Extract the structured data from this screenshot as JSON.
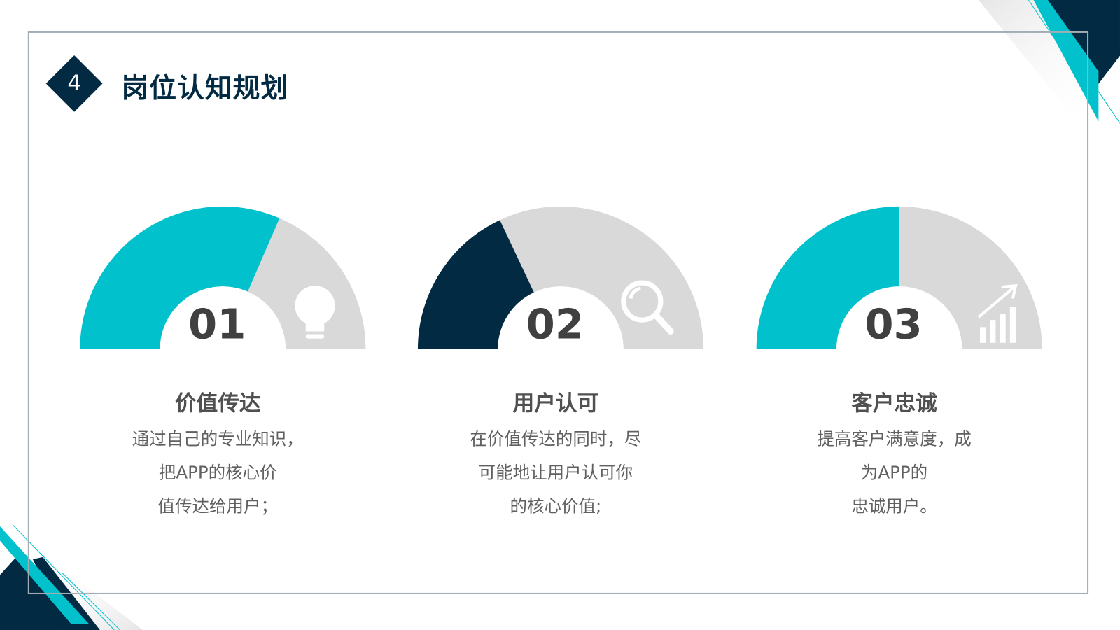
{
  "slide": {
    "number": "4",
    "title": "岗位认知规划"
  },
  "colors": {
    "navy": "#022a43",
    "cyan": "#00c1cc",
    "gray": "#d9d9d9"
  },
  "cards": [
    {
      "num": "01",
      "title": "价值传达",
      "lines": [
        "通过自己的专业知识，",
        "把APP的核心价",
        "值传达给用户；"
      ],
      "fill_fraction": 0.63,
      "fill_color": "#00c1cc",
      "icon": "lightbulb-icon"
    },
    {
      "num": "02",
      "title": "用户认可",
      "lines": [
        "在价值传达的同时，尽",
        "可能地让用户认可你",
        "的核心价值;"
      ],
      "fill_fraction": 0.36,
      "fill_color": "#022a43",
      "icon": "magnifier-icon"
    },
    {
      "num": "03",
      "title": "客户忠诚",
      "lines": [
        "提高客户满意度，成",
        "为APP的",
        "忠诚用户。"
      ],
      "fill_fraction": 0.5,
      "fill_color": "#00c1cc",
      "icon": "growth-chart-icon"
    }
  ]
}
